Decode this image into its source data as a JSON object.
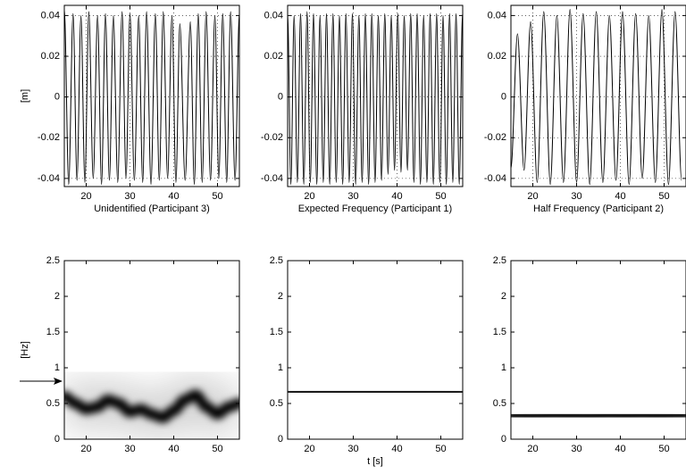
{
  "chart_data": [
    {
      "type": "line",
      "ylabel": "[m]",
      "xlabel": "Unidentified (Participant 3)",
      "xlim": [
        15,
        55
      ],
      "ylim": [
        -0.044,
        0.045
      ],
      "xticks": [
        20,
        30,
        40,
        50
      ],
      "yticks": [
        -0.04,
        -0.02,
        0,
        0.02,
        0.04
      ],
      "grid": true,
      "series": [
        {
          "color": "#000000",
          "x": [
            15,
            16,
            17,
            17.9,
            18.8,
            19.7,
            20.6,
            21.6,
            22.6,
            23.5,
            24.4,
            25.3,
            26.2,
            27.2,
            28.2,
            29.1,
            30,
            31,
            32,
            32.9,
            33.8,
            34.8,
            35.8,
            36.7,
            37.6,
            38.6,
            39.6,
            40.5,
            41.4,
            42.6,
            43.8,
            44.7,
            45.6,
            46.5,
            47.4,
            48.4,
            49.4,
            50.3,
            51.2,
            52.1,
            53,
            54,
            55
          ],
          "values": [
            0.043,
            -0.043,
            0.041,
            -0.041,
            0.04,
            -0.042,
            0.042,
            -0.04,
            0.04,
            -0.043,
            0.041,
            -0.041,
            0.04,
            -0.042,
            0.042,
            -0.04,
            0.041,
            -0.041,
            0.04,
            -0.042,
            0.042,
            -0.043,
            0.041,
            -0.041,
            0.042,
            -0.04,
            0.04,
            -0.042,
            0.036,
            -0.041,
            0.037,
            -0.043,
            0.041,
            -0.042,
            0.042,
            -0.041,
            0.04,
            -0.04,
            0.041,
            -0.042,
            0.042,
            -0.041,
            0.041
          ]
        }
      ]
    },
    {
      "type": "line",
      "xlabel": "Expected Frequency (Participant 1)",
      "xlim": [
        15,
        55
      ],
      "ylim": [
        -0.044,
        0.045
      ],
      "xticks": [
        20,
        30,
        40,
        50
      ],
      "yticks": [
        -0.04,
        -0.02,
        0,
        0.02,
        0.04
      ],
      "grid": true,
      "series": [
        {
          "color": "#000000",
          "x": [
            15,
            15.74,
            16.48,
            17.22,
            17.96,
            18.7,
            19.44,
            20.18,
            20.92,
            21.66,
            22.4,
            23.14,
            23.88,
            24.62,
            25.36,
            26.1,
            26.84,
            27.58,
            28.32,
            29.06,
            29.8,
            30.54,
            31.28,
            32.02,
            32.76,
            33.5,
            34.24,
            34.98,
            35.72,
            36.46,
            37.2,
            37.94,
            38.68,
            39.42,
            40.16,
            40.9,
            41.64,
            42.38,
            43.12,
            43.86,
            44.6,
            45.34,
            46.08,
            46.82,
            47.56,
            48.3,
            49.04,
            49.78,
            50.52,
            51.26,
            52,
            52.74,
            53.48,
            54.22,
            54.96
          ],
          "values": [
            0.041,
            -0.043,
            0.04,
            -0.042,
            0.041,
            -0.043,
            0.042,
            -0.042,
            0.041,
            -0.043,
            0.04,
            -0.042,
            0.041,
            -0.043,
            0.041,
            -0.042,
            0.04,
            -0.043,
            0.041,
            -0.042,
            0.041,
            -0.043,
            0.04,
            -0.042,
            0.041,
            -0.043,
            0.041,
            -0.042,
            0.04,
            -0.041,
            0.041,
            -0.038,
            0.04,
            -0.036,
            0.041,
            -0.037,
            0.04,
            -0.036,
            0.041,
            -0.042,
            0.041,
            -0.043,
            0.04,
            -0.042,
            0.041,
            -0.043,
            0.041,
            -0.042,
            0.04,
            -0.043,
            0.041,
            -0.042,
            0.041,
            -0.043,
            0.041
          ]
        }
      ]
    },
    {
      "type": "line",
      "xlabel": "Half Frequency (Participant 2)",
      "xlim": [
        15,
        55
      ],
      "ylim": [
        -0.044,
        0.045
      ],
      "xticks": [
        20,
        30,
        40,
        50
      ],
      "yticks": [
        -0.04,
        -0.02,
        0,
        0.02,
        0.04
      ],
      "grid": true,
      "series": [
        {
          "color": "#000000",
          "x": [
            15,
            16.5,
            18,
            19.5,
            21,
            22.5,
            24,
            25.5,
            27,
            28.5,
            30,
            31.5,
            33,
            34.5,
            36,
            37.5,
            39,
            40.5,
            42,
            43.5,
            45,
            46.5,
            48,
            49.5,
            51,
            52.5,
            54
          ],
          "values": [
            -0.035,
            0.031,
            -0.036,
            0.037,
            -0.042,
            0.042,
            -0.043,
            0.04,
            -0.042,
            0.043,
            -0.042,
            0.041,
            -0.043,
            0.042,
            -0.042,
            0.04,
            -0.041,
            0.042,
            -0.043,
            0.041,
            -0.04,
            0.04,
            -0.042,
            0.043,
            -0.043,
            0.042,
            -0.041
          ]
        }
      ]
    },
    {
      "type": "spectrogram",
      "ylabel": "[Hz]",
      "xlim": [
        15,
        55
      ],
      "ylim": [
        0,
        2.5
      ],
      "xticks": [
        20,
        30,
        40,
        50
      ],
      "yticks": [
        0,
        0.5,
        1,
        1.5,
        2,
        2.5
      ],
      "grid": false,
      "series": [
        {
          "color": "#000000",
          "x": [
            15,
            17.5,
            20,
            22.5,
            25,
            27.5,
            30,
            32.5,
            35,
            37.5,
            40,
            42.5,
            45,
            47.5,
            50,
            52.5,
            55
          ],
          "values": [
            0.6,
            0.5,
            0.42,
            0.45,
            0.55,
            0.5,
            0.38,
            0.42,
            0.35,
            0.3,
            0.4,
            0.55,
            0.62,
            0.45,
            0.35,
            0.45,
            0.5
          ]
        }
      ]
    },
    {
      "type": "spectrogram",
      "xlabel": "t [s]",
      "xlim": [
        15,
        55
      ],
      "ylim": [
        0,
        2.5
      ],
      "xticks": [
        20,
        30,
        40,
        50
      ],
      "yticks": [
        0,
        0.5,
        1,
        1.5,
        2,
        2.5
      ],
      "grid": false,
      "series": [
        {
          "color": "#000000",
          "x": [
            15,
            17.5,
            20,
            22.5,
            25,
            27.5,
            30,
            32.5,
            35,
            37.5,
            40,
            42.5,
            45,
            47.5,
            50,
            52.5,
            55
          ],
          "values": [
            0.67,
            0.66,
            0.66,
            0.67,
            0.67,
            0.66,
            0.67,
            0.67,
            0.66,
            0.66,
            0.67,
            0.66,
            0.66,
            0.67,
            0.67,
            0.66,
            0.66
          ]
        }
      ]
    },
    {
      "type": "spectrogram",
      "xlim": [
        15,
        55
      ],
      "ylim": [
        0,
        2.5
      ],
      "xticks": [
        20,
        30,
        40,
        50
      ],
      "yticks": [
        0,
        0.5,
        1,
        1.5,
        2,
        2.5
      ],
      "grid": false,
      "series": [
        {
          "color": "#000000",
          "x": [
            15,
            17.5,
            20,
            22.5,
            25,
            27.5,
            30,
            32.5,
            35,
            37.5,
            40,
            42.5,
            45,
            47.5,
            50,
            52.5,
            55
          ],
          "values": [
            0.33,
            0.33,
            0.32,
            0.33,
            0.34,
            0.33,
            0.33,
            0.32,
            0.33,
            0.34,
            0.33,
            0.33,
            0.34,
            0.33,
            0.33,
            0.34,
            0.34
          ]
        }
      ]
    }
  ]
}
